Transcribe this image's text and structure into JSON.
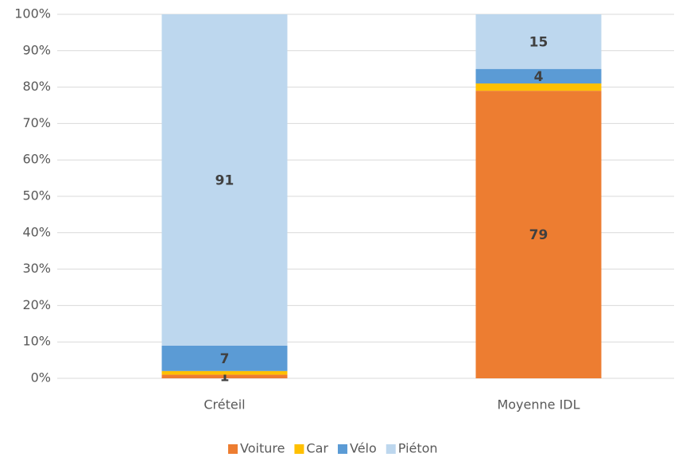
{
  "chart_data": {
    "type": "stacked_bar",
    "categories": [
      "Créteil",
      "Moyenne IDL"
    ],
    "series": [
      {
        "name": "Voiture",
        "color": "#ed7d31",
        "values": [
          1,
          79
        ],
        "show_labels": true
      },
      {
        "name": "Car",
        "color": "#ffc000",
        "values": [
          1,
          2
        ],
        "show_labels": false
      },
      {
        "name": "Vélo",
        "color": "#5b9bd5",
        "values": [
          7,
          4
        ],
        "show_labels": true
      },
      {
        "name": "Piéton",
        "color": "#bdd7ee",
        "values": [
          91,
          15
        ],
        "show_labels": true
      }
    ],
    "ylim": [
      0,
      100
    ],
    "yticks": [
      {
        "value": 0,
        "label": "0%"
      },
      {
        "value": 10,
        "label": "10%"
      },
      {
        "value": 20,
        "label": "20%"
      },
      {
        "value": 30,
        "label": "30%"
      },
      {
        "value": 40,
        "label": "40%"
      },
      {
        "value": 50,
        "label": "50%"
      },
      {
        "value": 60,
        "label": "60%"
      },
      {
        "value": 70,
        "label": "70%"
      },
      {
        "value": 80,
        "label": "80%"
      },
      {
        "value": 90,
        "label": "90%"
      },
      {
        "value": 100,
        "label": "100%"
      }
    ],
    "grid": true,
    "legend": "bottom"
  }
}
